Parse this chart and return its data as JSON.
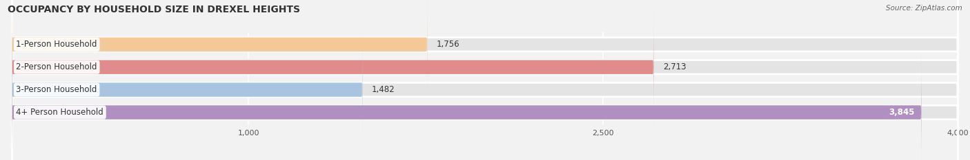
{
  "title": "OCCUPANCY BY HOUSEHOLD SIZE IN DREXEL HEIGHTS",
  "source": "Source: ZipAtlas.com",
  "categories": [
    "1-Person Household",
    "2-Person Household",
    "3-Person Household",
    "4+ Person Household"
  ],
  "values": [
    1756,
    2713,
    1482,
    3845
  ],
  "bar_colors": [
    "#f5c897",
    "#e08c8c",
    "#a8c4e0",
    "#b090c0"
  ],
  "value_label_inside": [
    false,
    false,
    false,
    true
  ],
  "xlim_data": [
    -200,
    4200
  ],
  "xaxis_min": 0,
  "xaxis_max": 4000,
  "xticks": [
    1000,
    2500,
    4000
  ],
  "background_color": "#f2f2f2",
  "bar_bg_color": "#e4e4e4",
  "bar_height": 0.62,
  "figsize": [
    14.06,
    2.33
  ],
  "dpi": 100,
  "title_fontsize": 10,
  "label_fontsize": 8.5,
  "value_fontsize": 8.5,
  "tick_fontsize": 8
}
